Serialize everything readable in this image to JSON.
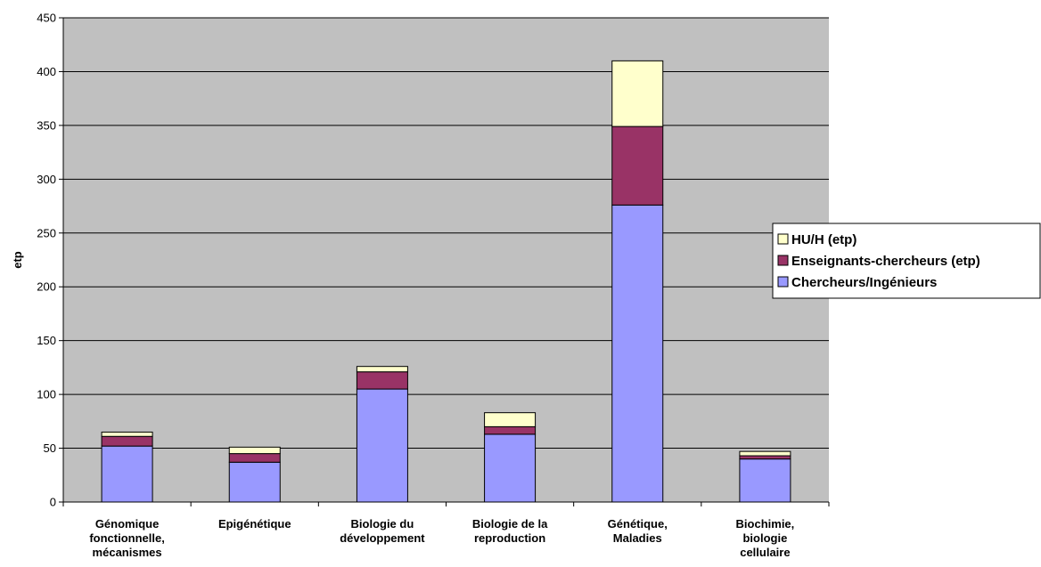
{
  "chart_data": {
    "type": "bar",
    "stacked": true,
    "categories": [
      [
        "Génomique",
        "fonctionnelle,",
        "mécanismes"
      ],
      [
        "Epigénétique"
      ],
      [
        "Biologie du",
        "développement"
      ],
      [
        "Biologie de la",
        "reproduction"
      ],
      [
        "Génétique,",
        "Maladies"
      ],
      [
        "Biochimie,",
        "biologie",
        "cellulaire"
      ]
    ],
    "series": [
      {
        "name": "Chercheurs/Ingénieurs",
        "color": "#9999ff",
        "values": [
          52,
          37,
          105,
          63,
          276,
          40
        ]
      },
      {
        "name": "Enseignants-chercheurs (etp)",
        "color": "#993366",
        "values": [
          9,
          8,
          16,
          7,
          73,
          3
        ]
      },
      {
        "name": "HU/H (etp)",
        "color": "#ffffcc",
        "values": [
          4,
          6,
          5,
          13,
          61,
          4
        ]
      }
    ],
    "legend_order": [
      "HU/H (etp)",
      "Enseignants-chercheurs (etp)",
      "Chercheurs/Ingénieurs"
    ],
    "xlabel": "",
    "ylabel": "etp",
    "ylim": [
      0,
      450
    ],
    "yticks": [
      0,
      50,
      100,
      150,
      200,
      250,
      300,
      350,
      400,
      450
    ],
    "grid": true,
    "legend_position": "right",
    "plot_background": "#c0c0c0"
  }
}
